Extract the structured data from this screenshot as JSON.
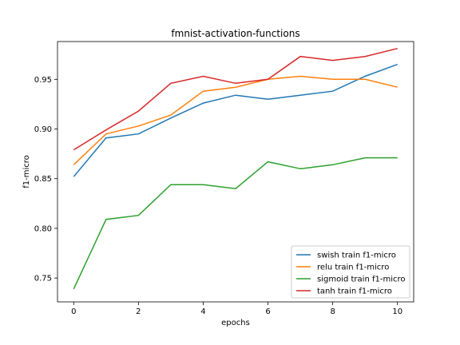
{
  "chart_data": {
    "type": "line",
    "title": "fmnist-activation-functions",
    "xlabel": "epochs",
    "ylabel": "f1-micro",
    "xlim": [
      -0.5,
      10.5
    ],
    "ylim": [
      0.726,
      0.988
    ],
    "xticks": [
      0,
      2,
      4,
      6,
      8,
      10
    ],
    "yticks": [
      0.75,
      0.8,
      0.85,
      0.9,
      0.95
    ],
    "ytick_labels": [
      "0.75",
      "0.80",
      "0.85",
      "0.90",
      "0.95"
    ],
    "grid": false,
    "legend_position": "lower-right",
    "x": [
      0,
      1,
      2,
      3,
      4,
      5,
      6,
      7,
      8,
      9,
      10
    ],
    "series": [
      {
        "name": "swish train f1-micro",
        "color": "#1f77b4",
        "values": [
          0.852,
          0.891,
          0.895,
          0.911,
          0.926,
          0.934,
          0.93,
          0.934,
          0.938,
          0.953,
          0.965
        ]
      },
      {
        "name": "relu train f1-micro",
        "color": "#ff7f0e",
        "values": [
          0.864,
          0.895,
          0.903,
          0.914,
          0.938,
          0.942,
          0.95,
          0.953,
          0.95,
          0.95,
          0.942
        ]
      },
      {
        "name": "sigmoid train f1-micro",
        "color": "#2ca02c",
        "values": [
          0.739,
          0.809,
          0.813,
          0.844,
          0.844,
          0.84,
          0.867,
          0.86,
          0.864,
          0.871,
          0.871
        ]
      },
      {
        "name": "tanh train f1-micro",
        "color": "#d62728",
        "values": [
          0.879,
          0.899,
          0.918,
          0.946,
          0.953,
          0.946,
          0.95,
          0.973,
          0.969,
          0.973,
          0.981
        ]
      }
    ]
  }
}
